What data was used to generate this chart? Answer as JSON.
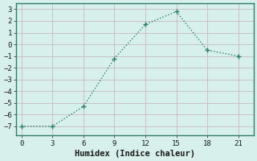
{
  "x": [
    0,
    3,
    6,
    9,
    12,
    15,
    18,
    21
  ],
  "y": [
    -7,
    -7,
    -5.3,
    -1.2,
    1.7,
    2.8,
    -0.5,
    -1.0
  ],
  "line_color": "#2e7d6e",
  "marker": "+",
  "marker_size": 4,
  "linewidth": 1.0,
  "xlabel": "Humidex (Indice chaleur)",
  "ylim": [
    -7.8,
    3.5
  ],
  "xlim": [
    -0.5,
    22.5
  ],
  "yticks": [
    -7,
    -6,
    -5,
    -4,
    -3,
    -2,
    -1,
    0,
    1,
    2,
    3
  ],
  "xticks": [
    0,
    3,
    6,
    9,
    12,
    15,
    18,
    21
  ],
  "bg_color": "#d8f0eb",
  "grid_color_x": "#c8b8c0",
  "grid_color_y": "#c8b8c0",
  "tick_label_fontsize": 6.5,
  "xlabel_fontsize": 7.5
}
